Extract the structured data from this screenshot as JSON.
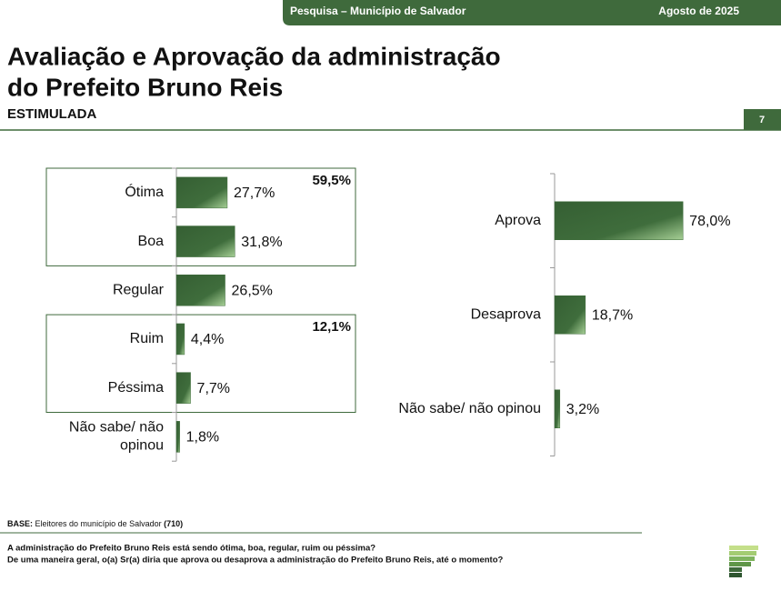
{
  "header": {
    "survey": "Pesquisa – Município de Salvador",
    "date": "Agosto de 2025",
    "page": "7"
  },
  "title": [
    "Avaliação e Aprovação da administração",
    "do Prefeito Bruno Reis"
  ],
  "subtitle": "ESTIMULADA",
  "chart_data": [
    {
      "type": "bar",
      "orientation": "horizontal",
      "categories": [
        "Ótima",
        "Boa",
        "Regular",
        "Ruim",
        "Péssima",
        [
          "Não sabe/ não",
          "opinou"
        ]
      ],
      "values": [
        27.7,
        31.8,
        26.5,
        4.4,
        7.7,
        1.8
      ],
      "value_labels": [
        "27,7%",
        "31,8%",
        "26,5%",
        "4,4%",
        "7,7%",
        "1,8%"
      ],
      "group_totals": [
        {
          "value": 59.5,
          "label": "59,5%"
        },
        {
          "value": 12.1,
          "label": "12,1%"
        }
      ],
      "color": "#3d6b3a"
    },
    {
      "type": "bar",
      "orientation": "horizontal",
      "categories": [
        "Aprova",
        "Desaprova",
        "Não sabe/ não opinou"
      ],
      "values": [
        78.0,
        18.7,
        3.2
      ],
      "value_labels": [
        "78,0%",
        "18,7%",
        "3,2%"
      ],
      "color": "#3d6b3a"
    }
  ],
  "footer": {
    "base_label": "BASE:",
    "base_text": "Eleitores do município de Salvador",
    "base_n": "(710)",
    "questions": [
      "A administração do Prefeito Bruno Reis está sendo ótima, boa, regular, ruim ou péssima?",
      "De uma maneira geral, o(a) Sr(a) diria que aprova ou desaprova a administração do Prefeito Bruno Reis, até o momento?"
    ]
  }
}
